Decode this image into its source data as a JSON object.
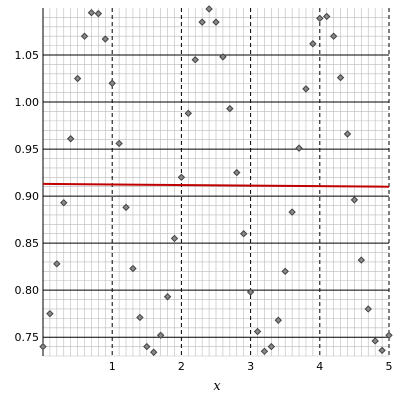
{
  "chart_data": {
    "type": "scatter",
    "title": "",
    "xlabel": "x",
    "ylabel": "",
    "xlim": [
      0,
      5
    ],
    "ylim": [
      0.73,
      1.1
    ],
    "grid": true,
    "x_ticks": [
      1,
      2,
      3,
      4,
      5
    ],
    "y_ticks": [
      0.75,
      0.8,
      0.85,
      0.9,
      0.95,
      1.0,
      1.05
    ],
    "y_tick_labels": [
      "0.75",
      "0.80",
      "0.85",
      "0.90",
      "0.95",
      "1.00",
      "1.05"
    ],
    "colors": {
      "points": "#444444",
      "trend_line": "#c00000",
      "grid_major": "#000000",
      "grid_minor": "#bbbbbb"
    },
    "series": [
      {
        "kind": "points",
        "x": [
          0.0,
          0.1,
          0.2,
          0.3,
          0.4,
          0.5,
          0.6,
          0.7,
          0.8,
          0.9,
          1.0,
          1.1,
          1.2,
          1.3,
          1.4,
          1.5,
          1.6,
          1.7,
          1.8,
          1.9,
          2.0,
          2.1,
          2.2,
          2.3,
          2.4,
          2.5,
          2.6,
          2.7,
          2.8,
          2.9,
          3.0,
          3.1,
          3.2,
          3.3,
          3.4,
          3.5,
          3.6,
          3.7,
          3.8,
          3.9,
          4.0,
          4.1,
          4.2,
          4.3,
          4.4,
          4.5,
          4.6,
          4.7,
          4.8,
          4.9,
          5.0
        ],
        "y": [
          0.74,
          0.775,
          0.828,
          0.893,
          0.961,
          1.025,
          1.07,
          1.095,
          1.094,
          1.067,
          1.02,
          0.956,
          0.888,
          0.823,
          0.771,
          0.74,
          0.734,
          0.752,
          0.793,
          0.855,
          0.92,
          0.988,
          1.045,
          1.085,
          1.099,
          1.085,
          1.048,
          0.993,
          0.925,
          0.86,
          0.798,
          0.756,
          0.735,
          0.74,
          0.768,
          0.82,
          0.883,
          0.951,
          1.014,
          1.062,
          1.089,
          1.091,
          1.07,
          1.026,
          0.966,
          0.896,
          0.832,
          0.78,
          0.746,
          0.736,
          0.752
        ]
      },
      {
        "kind": "line",
        "x": [
          0.0,
          5.0
        ],
        "y": [
          0.913,
          0.91
        ]
      }
    ]
  }
}
